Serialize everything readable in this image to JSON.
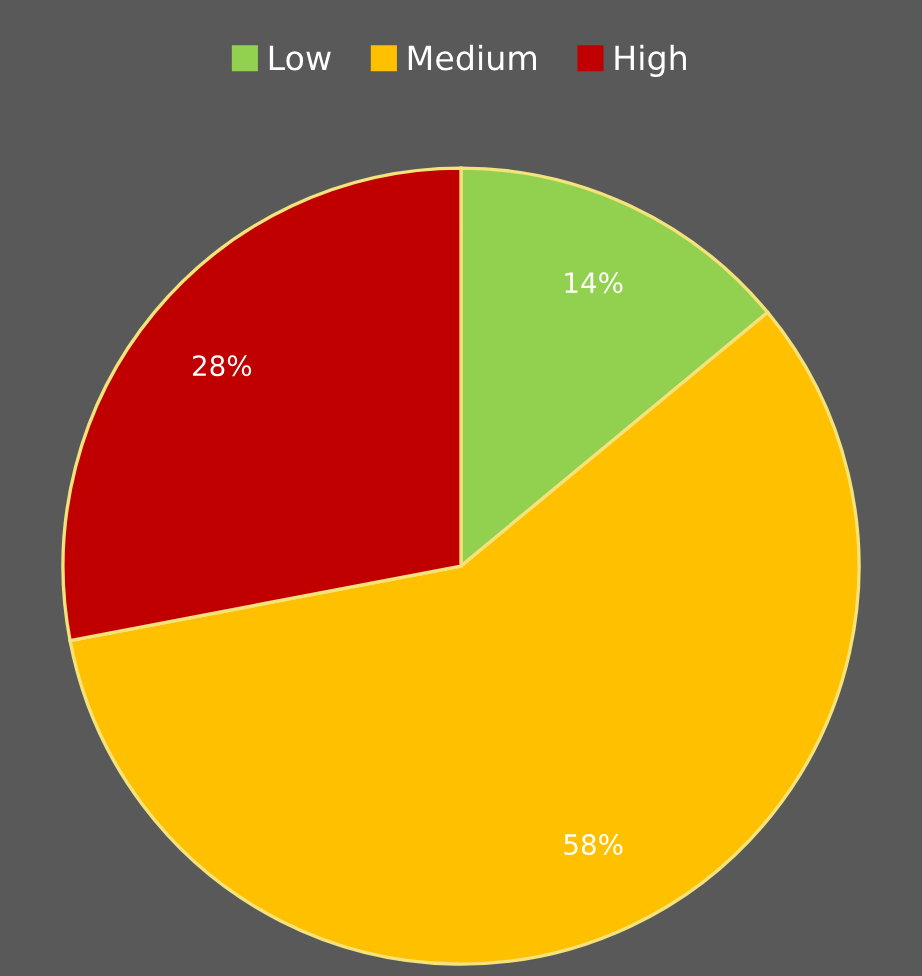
{
  "chart_data": {
    "type": "pie",
    "categories": [
      "Low",
      "Medium",
      "High"
    ],
    "values": [
      14,
      58,
      28
    ],
    "colors": [
      "#92d050",
      "#ffc000",
      "#c00000"
    ],
    "value_labels": [
      "14%",
      "58%",
      "28%"
    ],
    "legend": "top"
  }
}
